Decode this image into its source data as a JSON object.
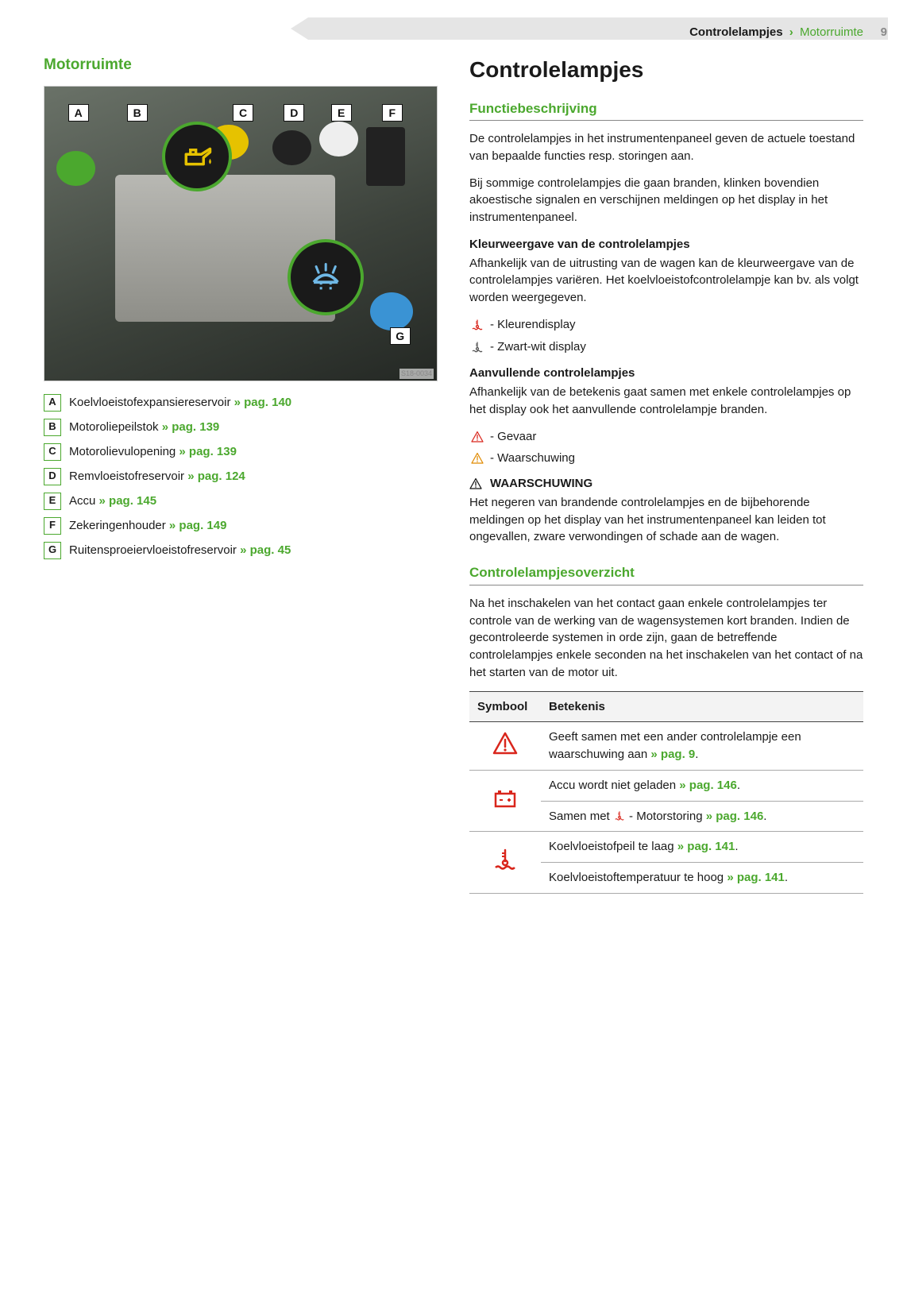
{
  "colors": {
    "accent": "#4ba82e",
    "danger": "#d9261c",
    "warn": "#e08a00",
    "text": "#1a1a1a",
    "muted": "#8a8a8a",
    "header_bg": "#e5e5e5"
  },
  "header": {
    "crumb_parent": "Controlelampjes",
    "crumb_current": "Motorruimte",
    "page_number": "9"
  },
  "left": {
    "title": "Motorruimte",
    "figure_credit": "S18-0034",
    "figure_labels": [
      "A",
      "B",
      "C",
      "D",
      "E",
      "F",
      "G"
    ],
    "legend": [
      {
        "key": "A",
        "text": "Koelvloeistofexpansiereservoir",
        "ref": "» pag. 140"
      },
      {
        "key": "B",
        "text": "Motoroliepeilstok",
        "ref": "» pag. 139"
      },
      {
        "key": "C",
        "text": "Motorolievulopening",
        "ref": "» pag. 139"
      },
      {
        "key": "D",
        "text": "Remvloeistofreservoir",
        "ref": "» pag. 124"
      },
      {
        "key": "E",
        "text": "Accu",
        "ref": "» pag. 145"
      },
      {
        "key": "F",
        "text": "Zekeringenhouder",
        "ref": "» pag. 149"
      },
      {
        "key": "G",
        "text": "Ruitensproeiervloeistofreservoir",
        "ref": "» pag. 45"
      }
    ]
  },
  "right": {
    "chapter": "Controlelampjes",
    "func_heading": "Functiebeschrijving",
    "para1": "De controlelampjes in het instrumentenpaneel geven de actuele toestand van bepaalde functies resp. storingen aan.",
    "para2": "Bij sommige controlelampjes die gaan branden, klinken bovendien akoestische signalen en verschijnen meldingen op het display in het instrumentenpaneel.",
    "kleur_heading": "Kleurweergave van de controlelampjes",
    "kleur_para": "Afhankelijk van de uitrusting van de wagen kan de kleurweergave van de controlelampjes variëren. Het koelvloeistofcontrolelampje kan bv. als volgt worden weergegeven.",
    "display_color": "- Kleurendisplay",
    "display_bw": "- Zwart-wit display",
    "aanv_heading": "Aanvullende controlelampjes",
    "aanv_para": "Afhankelijk van de betekenis gaat samen met enkele controlelampjes op het display ook het aanvullende controlelampje branden.",
    "danger_line": "- Gevaar",
    "warn_line": "- Waarschuwing",
    "warning_title": "WAARSCHUWING",
    "warning_body": "Het negeren van brandende controlelampjes en de bijbehorende meldingen op het display van het instrumentenpaneel kan leiden tot ongevallen, zware verwondingen of schade aan de wagen.",
    "overview_heading": "Controlelampjesoverzicht",
    "overview_para": "Na het inschakelen van het contact gaan enkele controlelampjes ter controle van de werking van de wagensystemen kort branden. Indien de gecontroleerde systemen in orde zijn, gaan de betreffende controlelampjes enkele seconden na het inschakelen van het contact of na het starten van de motor uit.",
    "table": {
      "col_symbol": "Symbool",
      "col_meaning": "Betekenis",
      "rows": [
        {
          "icon": "warning-triangle",
          "icon_color": "#d9261c",
          "lines": [
            {
              "text": "Geeft samen met een ander controlelampje een waarschuwing aan",
              "ref": "» pag. 9",
              "suffix": "."
            }
          ]
        },
        {
          "icon": "battery",
          "icon_color": "#d9261c",
          "lines": [
            {
              "text": "Accu wordt niet geladen",
              "ref": "» pag. 146",
              "suffix": "."
            },
            {
              "prefix": "Samen met ",
              "inline_icon": "coolant",
              "inline_icon_color": "#d9261c",
              "text2": " - Motorstoring",
              "ref": "» pag. 146",
              "suffix": "."
            }
          ]
        },
        {
          "icon": "coolant",
          "icon_color": "#d9261c",
          "lines": [
            {
              "text": "Koelvloeistofpeil te laag",
              "ref": "» pag. 141",
              "suffix": "."
            },
            {
              "text": "Koelvloeistoftemperatuur te hoog",
              "ref": "» pag. 141",
              "suffix": "."
            }
          ]
        }
      ]
    }
  }
}
